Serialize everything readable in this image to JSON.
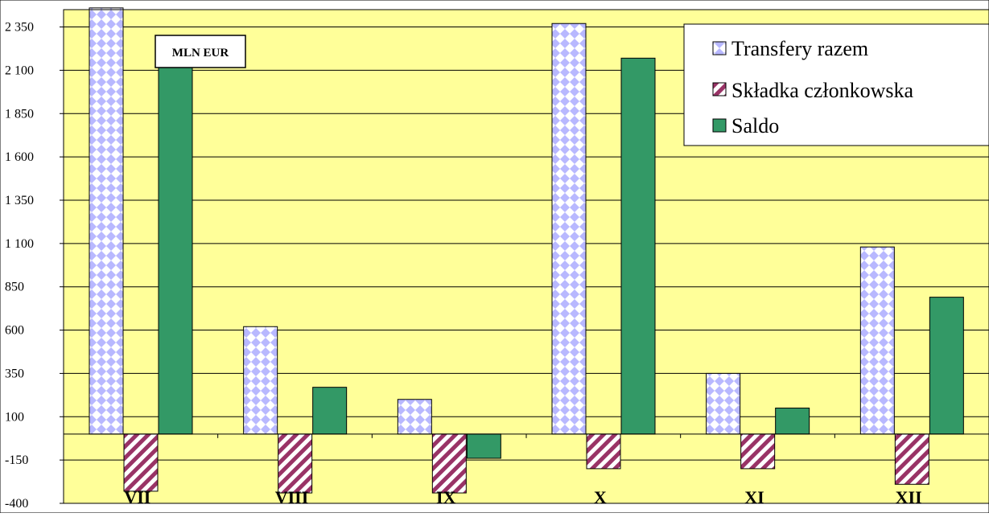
{
  "chart_data": {
    "type": "bar",
    "title": "",
    "xlabel": "",
    "ylabel": "",
    "unit_label": "MLN EUR",
    "categories": [
      "VII",
      "VIII",
      "IX",
      "X",
      "XI",
      "XII"
    ],
    "series": [
      {
        "name": "Transfery razem",
        "values": [
          2460,
          620,
          200,
          2370,
          350,
          1080
        ],
        "color": "#b8b8ff",
        "pattern": "checker"
      },
      {
        "name": "Składka członkowska",
        "values": [
          -330,
          -340,
          -340,
          -200,
          -200,
          -290
        ],
        "color": "#993366",
        "pattern": "diagonal"
      },
      {
        "name": "Saldo",
        "values": [
          2130,
          270,
          -140,
          2170,
          150,
          790
        ],
        "color": "#339966",
        "pattern": "solid"
      }
    ],
    "ylim": [
      -400,
      2450
    ],
    "yticks": [
      -400,
      -150,
      100,
      350,
      600,
      850,
      1100,
      1350,
      1600,
      1850,
      2100,
      2350
    ],
    "ytick_labels": [
      "-400",
      "-150",
      "100",
      "350",
      "600",
      "850",
      "1 100",
      "1 350",
      "1 600",
      "1 850",
      "2 100",
      "2 350"
    ],
    "grid": true,
    "legend_position": "top-right",
    "plot_background": "#ffff99"
  }
}
